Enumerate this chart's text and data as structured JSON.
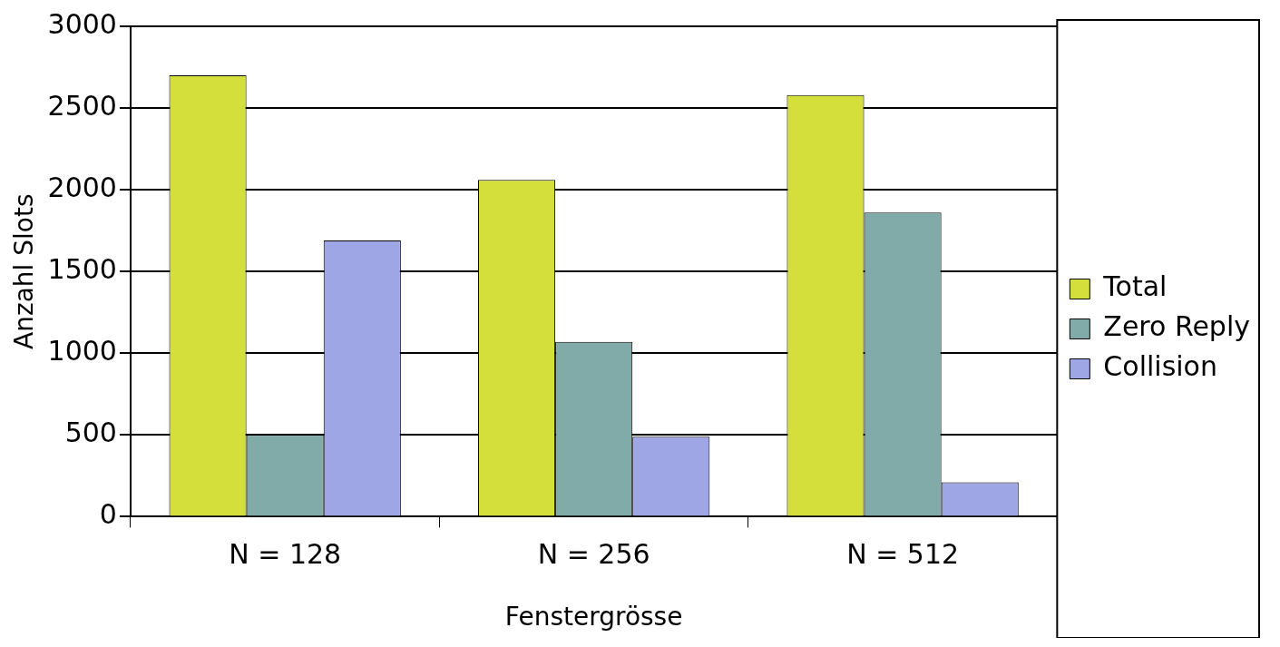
{
  "chart_data": {
    "type": "bar",
    "xlabel": "Fenstergrösse",
    "ylabel": "Anzahl Slots",
    "categories": [
      "N = 128",
      "N = 256",
      "N = 512"
    ],
    "series": [
      {
        "name": "Total",
        "color": "#d4df3c",
        "values": [
          2700,
          2060,
          2580
        ]
      },
      {
        "name": "Zero Reply",
        "color": "#80aba8",
        "values": [
          500,
          1070,
          1860
        ]
      },
      {
        "name": "Collision",
        "color": "#9fa6e6",
        "values": [
          1690,
          490,
          210
        ]
      }
    ],
    "ylim": [
      0,
      3000
    ],
    "yticks": [
      0,
      500,
      1000,
      1500,
      2000,
      2500,
      3000
    ],
    "grid": "y",
    "legend": "right"
  }
}
